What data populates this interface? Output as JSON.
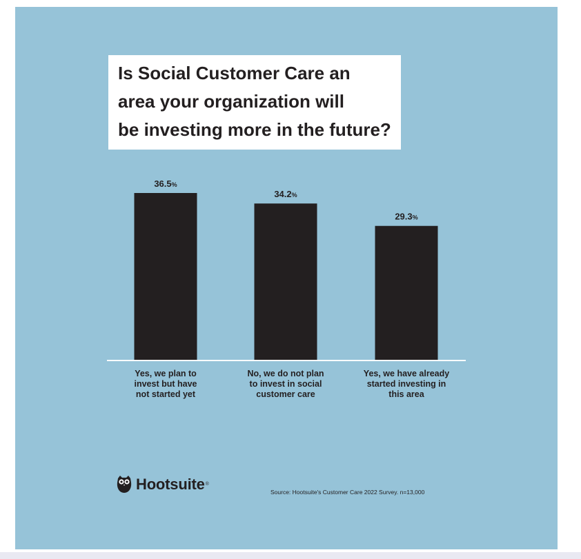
{
  "chart_data": {
    "type": "bar",
    "title": "Is Social Customer Care an area your organization will be investing more in the future?",
    "title_lines": [
      "Is Social Customer Care an",
      "area your organization will",
      "be investing more in the future?"
    ],
    "categories": [
      "Yes, we plan to invest but have not started yet",
      "No, we do not plan to invest in social customer care",
      "Yes, we have already started investing in this area"
    ],
    "category_lines": [
      [
        "Yes, we plan to",
        "invest but have",
        "not started yet"
      ],
      [
        "No, we do not plan",
        "to invest in social",
        "customer care"
      ],
      [
        "Yes, we have already",
        "started investing in",
        "this area"
      ]
    ],
    "values": [
      36.5,
      34.2,
      29.3
    ],
    "value_labels": [
      "36.5",
      "34.2",
      "29.3"
    ],
    "unit": "%",
    "ylim": [
      0,
      36.5
    ],
    "xlabel": "",
    "ylabel": "",
    "grid": false
  },
  "branding": {
    "logo_text": "Hootsuite",
    "logo_mark": "®",
    "source": "Source: Hootsuite's Customer Care 2022 Survey. n=13,000"
  },
  "colors": {
    "background": "#96c3d8",
    "bar": "#231f20",
    "title_box": "#ffffff",
    "baseline": "#ffffff"
  },
  "icons": {
    "logo_icon": "owl-icon"
  }
}
